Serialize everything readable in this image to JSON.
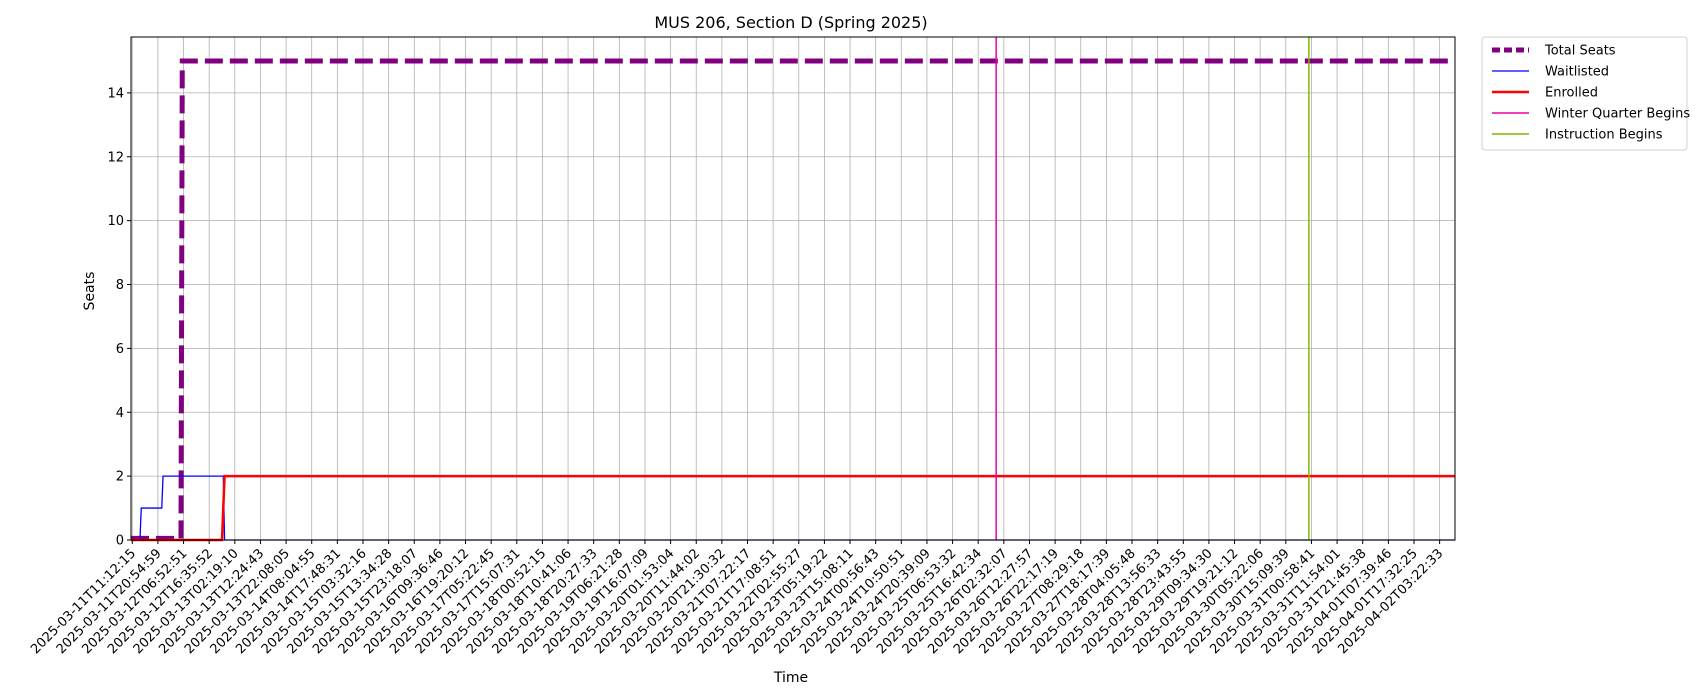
{
  "chart_data": {
    "type": "line",
    "title": "MUS 206, Section D (Spring 2025)",
    "xlabel": "Time",
    "ylabel": "Seats",
    "ylim": [
      0,
      15.75
    ],
    "yticks": [
      0,
      2,
      4,
      6,
      8,
      10,
      12,
      14
    ],
    "grid": true,
    "legend_position": "outside-top-right",
    "x_ticks": [
      "2025-03-11T11:12:15",
      "2025-03-11T20:54:59",
      "2025-03-12T06:52:51",
      "2025-03-12T16:35:52",
      "2025-03-13T02:19:10",
      "2025-03-13T12:24:43",
      "2025-03-13T22:08:05",
      "2025-03-14T08:04:55",
      "2025-03-14T17:48:31",
      "2025-03-15T03:32:16",
      "2025-03-15T13:34:28",
      "2025-03-15T23:18:07",
      "2025-03-16T09:36:46",
      "2025-03-16T19:20:12",
      "2025-03-17T05:22:45",
      "2025-03-17T15:07:31",
      "2025-03-18T00:52:15",
      "2025-03-18T10:41:06",
      "2025-03-18T20:27:33",
      "2025-03-19T06:21:28",
      "2025-03-19T16:07:09",
      "2025-03-20T01:53:04",
      "2025-03-20T11:44:02",
      "2025-03-20T21:30:32",
      "2025-03-21T07:22:17",
      "2025-03-21T17:08:51",
      "2025-03-22T02:55:27",
      "2025-03-23T05:19:22",
      "2025-03-23T15:08:11",
      "2025-03-24T00:56:43",
      "2025-03-24T10:50:51",
      "2025-03-24T20:39:09",
      "2025-03-25T06:53:32",
      "2025-03-25T16:42:34",
      "2025-03-26T02:32:07",
      "2025-03-26T12:27:57",
      "2025-03-26T22:17:19",
      "2025-03-27T08:29:18",
      "2025-03-27T18:17:39",
      "2025-03-28T04:05:48",
      "2025-03-28T13:56:33",
      "2025-03-28T23:43:55",
      "2025-03-29T09:34:30",
      "2025-03-29T19:21:12",
      "2025-03-30T05:22:06",
      "2025-03-30T15:09:39",
      "2025-03-31T00:58:41",
      "2025-03-31T11:54:01",
      "2025-03-31T21:45:38",
      "2025-04-01T07:39:46",
      "2025-04-01T17:32:25",
      "2025-04-02T03:22:33"
    ],
    "x_range_ticks": [
      -0.05,
      51.6
    ],
    "series": [
      {
        "name": "Total Seats",
        "color": "#800080",
        "style": "dashed",
        "x": [
          -0.05,
          1.9,
          1.95,
          51.6
        ],
        "y": [
          0.05,
          0.05,
          15,
          15
        ]
      },
      {
        "name": "Waitlisted",
        "color": "#0000ff",
        "style": "solid",
        "x": [
          -0.05,
          0.3,
          0.35,
          1.15,
          1.2,
          3.55,
          3.6,
          51.6
        ],
        "y": [
          0,
          0,
          1,
          1,
          2,
          2,
          0,
          0
        ]
      },
      {
        "name": "Enrolled",
        "color": "#ff0000",
        "style": "solid",
        "x": [
          -0.05,
          3.5,
          3.6,
          51.6
        ],
        "y": [
          0,
          0,
          2,
          2
        ]
      }
    ],
    "vlines": [
      {
        "name": "Winter Quarter Begins",
        "color": "#e600a8",
        "x": 33.7
      },
      {
        "name": "Instruction Begins",
        "color": "#7fb800",
        "x": 45.9
      }
    ]
  }
}
